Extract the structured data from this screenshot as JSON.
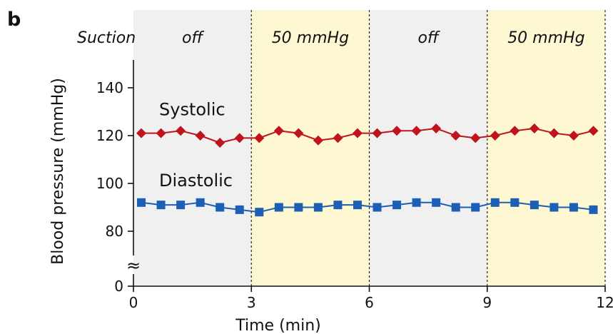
{
  "panel_label": "b",
  "chart_data": {
    "type": "line",
    "title": "",
    "xlabel": "Time (min)",
    "ylabel": "Blood pressure (mmHg)",
    "xlim": [
      0,
      12
    ],
    "ylim": [
      0,
      150
    ],
    "axis_break": "≈",
    "x_ticks": [
      "0",
      "3",
      "6",
      "9",
      "12"
    ],
    "y_ticks": [
      "0",
      "80",
      "100",
      "120",
      "140"
    ],
    "grid": false,
    "phase_row_label": "Suction",
    "phases": [
      {
        "start": 0,
        "end": 3,
        "label": "off",
        "color": "#f0f0f0"
      },
      {
        "start": 3,
        "end": 6,
        "label": "50 mmHg",
        "color": "#fdf7d2"
      },
      {
        "start": 6,
        "end": 9,
        "label": "off",
        "color": "#f0f0f0"
      },
      {
        "start": 9,
        "end": 12,
        "label": "50 mmHg",
        "color": "#fdf7d2"
      }
    ],
    "x": [
      0.2,
      0.7,
      1.2,
      1.7,
      2.2,
      2.7,
      3.2,
      3.7,
      4.2,
      4.7,
      5.2,
      5.7,
      6.2,
      6.7,
      7.2,
      7.7,
      8.2,
      8.7,
      9.2,
      9.7,
      10.2,
      10.7,
      11.2,
      11.7
    ],
    "series": [
      {
        "name": "Systolic",
        "color": "#c0141c",
        "marker": "diamond",
        "values": [
          121,
          121,
          122,
          120,
          117,
          119,
          119,
          122,
          121,
          118,
          119,
          121,
          121,
          122,
          122,
          123,
          120,
          119,
          120,
          122,
          123,
          121,
          120,
          122
        ]
      },
      {
        "name": "Diastolic",
        "color": "#1c5fb5",
        "marker": "square",
        "values": [
          92,
          91,
          91,
          92,
          90,
          89,
          88,
          90,
          90,
          90,
          91,
          91,
          90,
          91,
          92,
          92,
          90,
          90,
          92,
          92,
          91,
          90,
          90,
          89
        ]
      }
    ]
  }
}
